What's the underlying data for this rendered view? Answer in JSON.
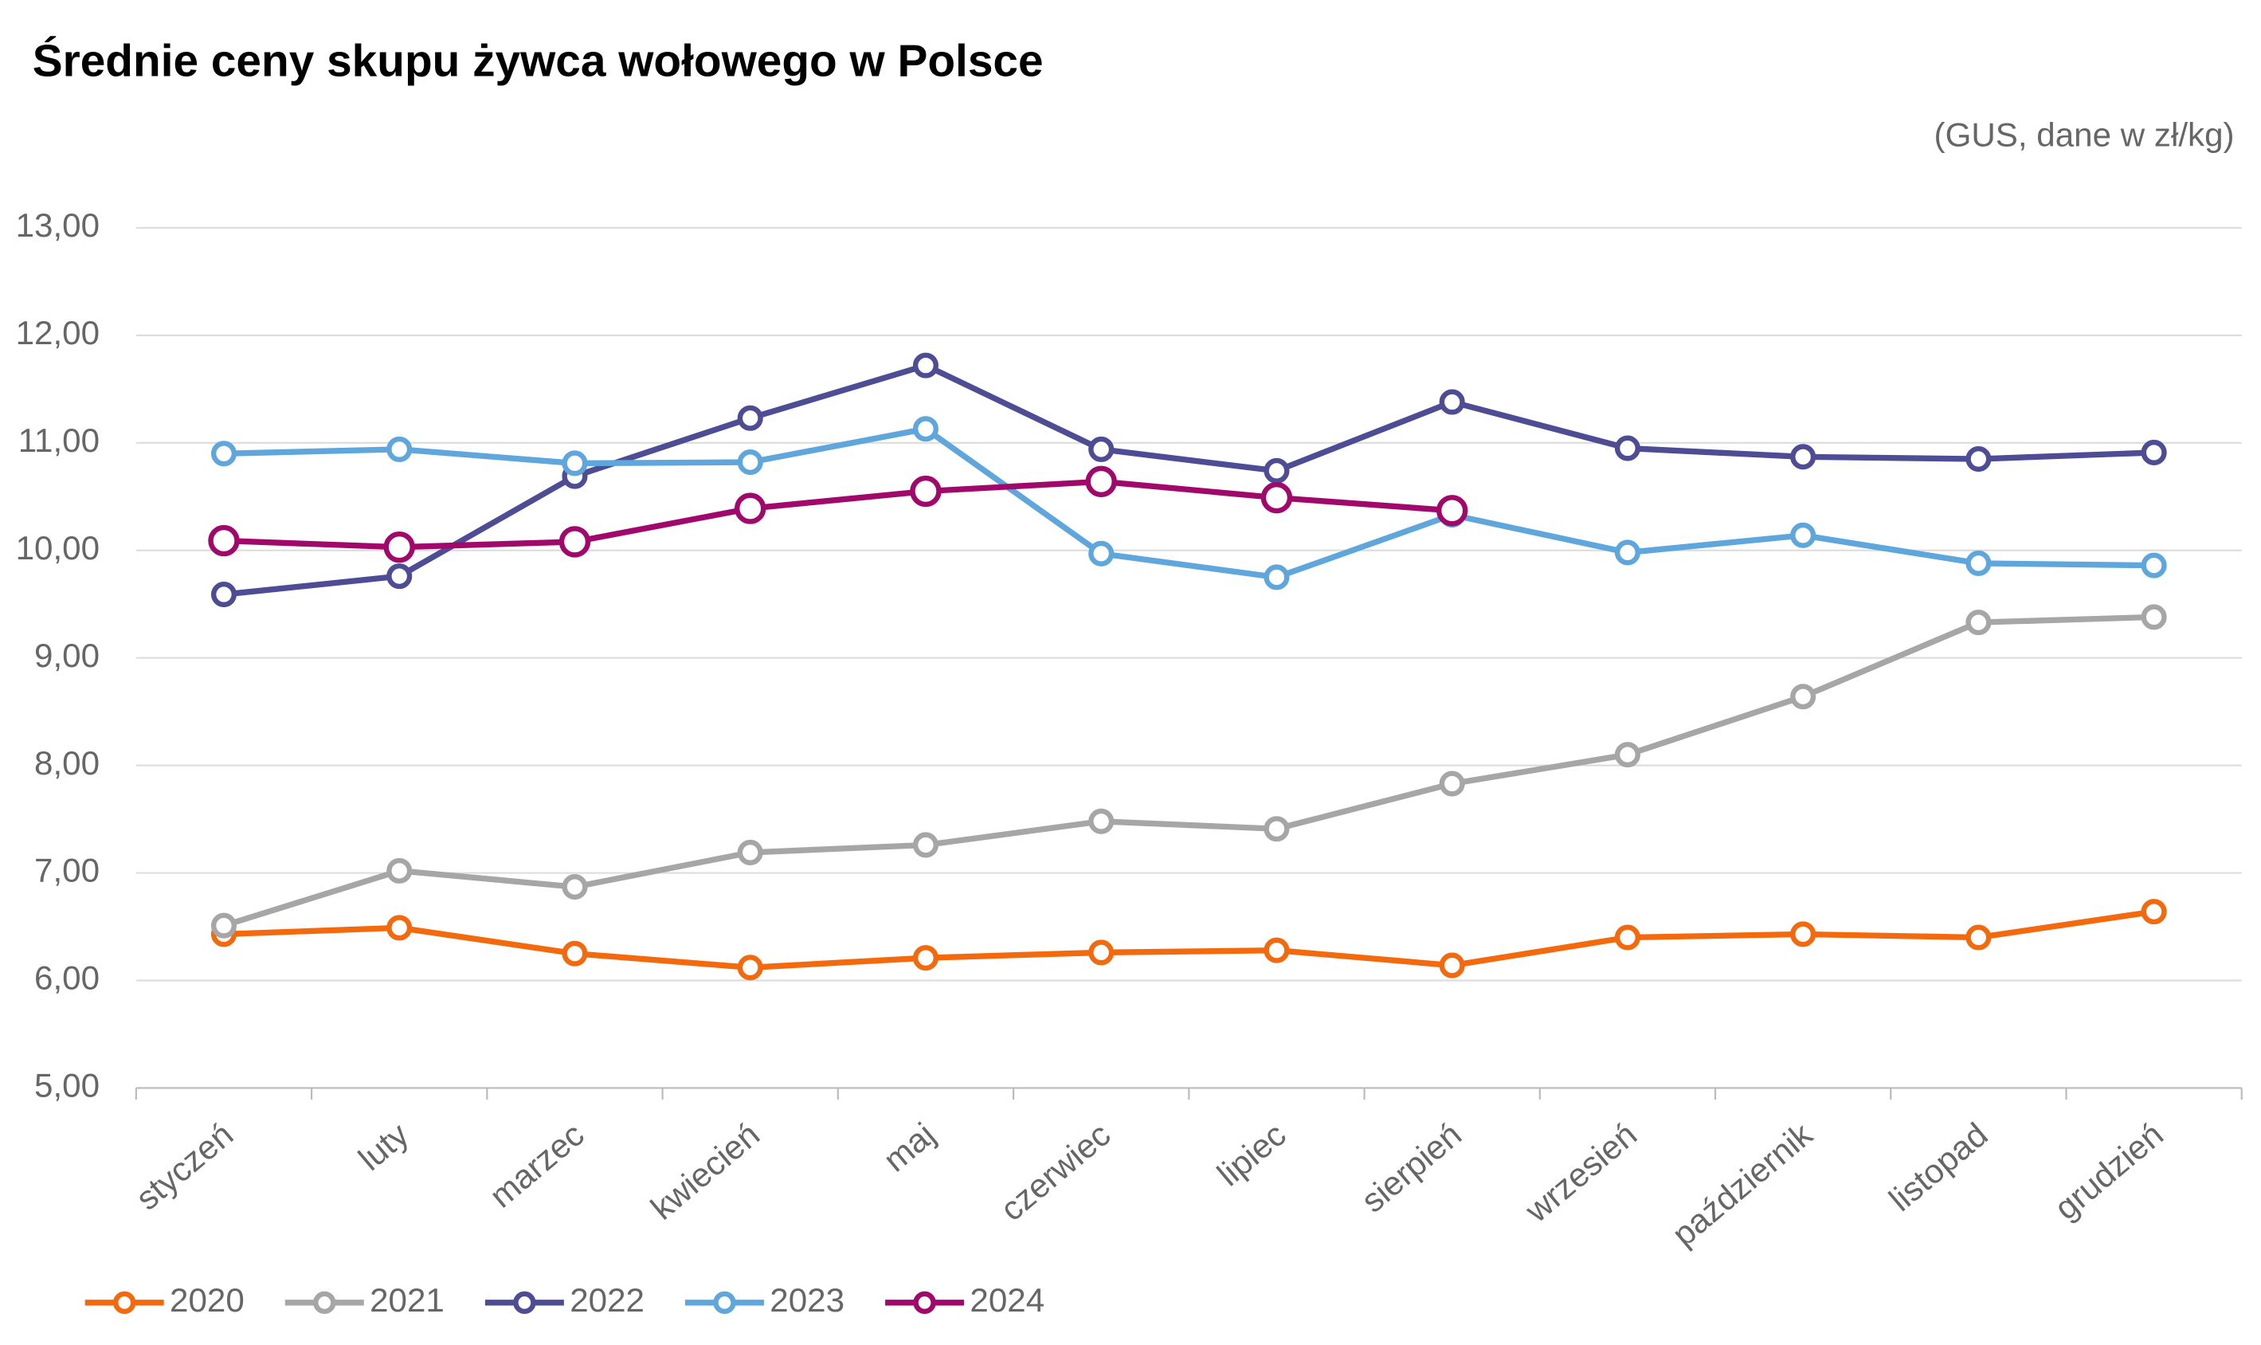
{
  "chart_data": {
    "type": "line",
    "title": "Średnie ceny skupu żywca wołowego w Polsce",
    "subtitle": "(GUS, dane w zł/kg)",
    "categories": [
      "styczeń",
      "luty",
      "marzec",
      "kwiecień",
      "maj",
      "czerwiec",
      "lipiec",
      "sierpień",
      "wrzesień",
      "październik",
      "listopad",
      "grudzień"
    ],
    "series": [
      {
        "name": "2020",
        "color": "#f2690e",
        "values": [
          6.43,
          6.49,
          6.25,
          6.12,
          6.21,
          6.26,
          6.28,
          6.14,
          6.4,
          6.43,
          6.4,
          6.64
        ]
      },
      {
        "name": "2021",
        "color": "#a6a6a6",
        "values": [
          6.51,
          7.02,
          6.87,
          7.19,
          7.26,
          7.48,
          7.41,
          7.83,
          8.1,
          8.64,
          9.33,
          9.38
        ]
      },
      {
        "name": "2022",
        "color": "#4e4c94",
        "values": [
          9.59,
          9.76,
          10.69,
          11.23,
          11.72,
          10.94,
          10.74,
          11.38,
          10.95,
          10.87,
          10.85,
          10.91
        ]
      },
      {
        "name": "2023",
        "color": "#5ea6dc",
        "values": [
          10.9,
          10.94,
          10.81,
          10.82,
          11.13,
          9.97,
          9.75,
          10.33,
          9.98,
          10.14,
          9.88,
          9.86
        ]
      },
      {
        "name": "2024",
        "color": "#a0086b",
        "values": [
          10.09,
          10.03,
          10.08,
          10.39,
          10.55,
          10.64,
          10.49,
          10.37,
          null,
          null,
          null,
          null
        ]
      }
    ],
    "ylim": [
      5,
      13
    ],
    "yticks": [
      {
        "value": 5,
        "label": "5,00"
      },
      {
        "value": 6,
        "label": "6,00"
      },
      {
        "value": 7,
        "label": "7,00"
      },
      {
        "value": 8,
        "label": "8,00"
      },
      {
        "value": 9,
        "label": "9,00"
      },
      {
        "value": 10,
        "label": "10,00"
      },
      {
        "value": 11,
        "label": "11,00"
      },
      {
        "value": 12,
        "label": "12,00"
      },
      {
        "value": 13,
        "label": "13,00"
      }
    ],
    "grid": true,
    "legend": "bottom"
  }
}
